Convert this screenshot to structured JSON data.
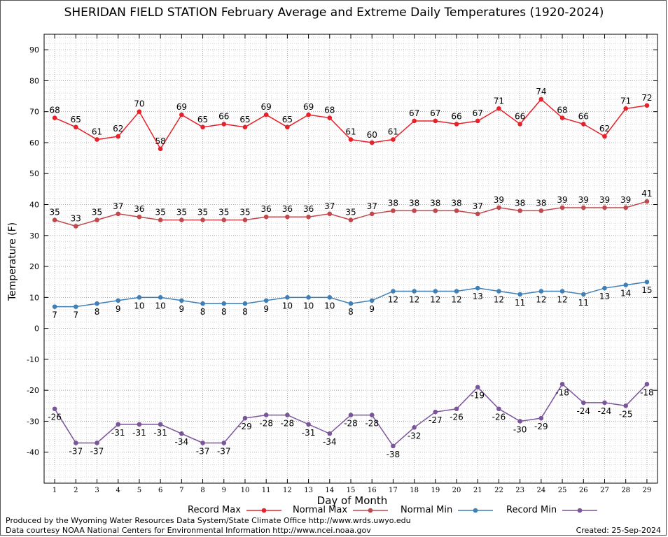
{
  "title": "SHERIDAN FIELD STATION February Average and Extreme Daily Temperatures (1920-2024)",
  "credits": {
    "line1": "Produced by the Wyoming Water Resources Data System/State Climate Office http://www.wrds.uwyo.edu",
    "line2": "Data courtesy NOAA National Centers for Environmental Information http://www.ncei.noaa.gov",
    "created": "Created:  25-Sep-2024"
  },
  "chart_data": {
    "type": "line",
    "title": "SHERIDAN FIELD STATION February Average and Extreme Daily Temperatures (1920-2024)",
    "xlabel": "Day of Month",
    "ylabel": "Temperature (F)",
    "x": [
      1,
      2,
      3,
      4,
      5,
      6,
      7,
      8,
      9,
      10,
      11,
      12,
      13,
      14,
      15,
      16,
      17,
      18,
      19,
      20,
      21,
      22,
      23,
      24,
      25,
      26,
      27,
      28,
      29
    ],
    "xlim": [
      0.5,
      29.5
    ],
    "ylim": [
      -50,
      95
    ],
    "yticks": [
      -40,
      -30,
      -20,
      -10,
      0,
      10,
      20,
      30,
      40,
      50,
      60,
      70,
      80,
      90
    ],
    "grid": true,
    "legend_position": "bottom",
    "series": [
      {
        "name": "Record Max",
        "color": "#e8202a",
        "values": [
          68,
          65,
          61,
          62,
          70,
          58,
          69,
          65,
          66,
          65,
          69,
          65,
          69,
          68,
          61,
          60,
          61,
          67,
          67,
          66,
          67,
          71,
          66,
          74,
          68,
          66,
          62,
          71,
          72
        ]
      },
      {
        "name": "Normal Max",
        "color": "#c0474c",
        "values": [
          35,
          33,
          35,
          37,
          36,
          35,
          35,
          35,
          35,
          35,
          36,
          36,
          36,
          37,
          35,
          37,
          38,
          38,
          38,
          38,
          37,
          39,
          38,
          38,
          39,
          39,
          39,
          39,
          41
        ]
      },
      {
        "name": "Normal Min",
        "color": "#3f7fb5",
        "values": [
          7,
          7,
          8,
          9,
          10,
          10,
          9,
          8,
          8,
          8,
          9,
          10,
          10,
          10,
          8,
          9,
          12,
          12,
          12,
          12,
          13,
          12,
          11,
          12,
          12,
          11,
          13,
          14,
          15
        ]
      },
      {
        "name": "Record Min",
        "color": "#7a559a",
        "values": [
          -26,
          -37,
          -37,
          -31,
          -31,
          -31,
          -34,
          -37,
          -37,
          -29,
          -28,
          -28,
          -31,
          -34,
          -28,
          -28,
          -38,
          -32,
          -27,
          -26,
          -19,
          -26,
          -30,
          -29,
          -18,
          -24,
          -24,
          -25,
          -18
        ]
      }
    ]
  }
}
